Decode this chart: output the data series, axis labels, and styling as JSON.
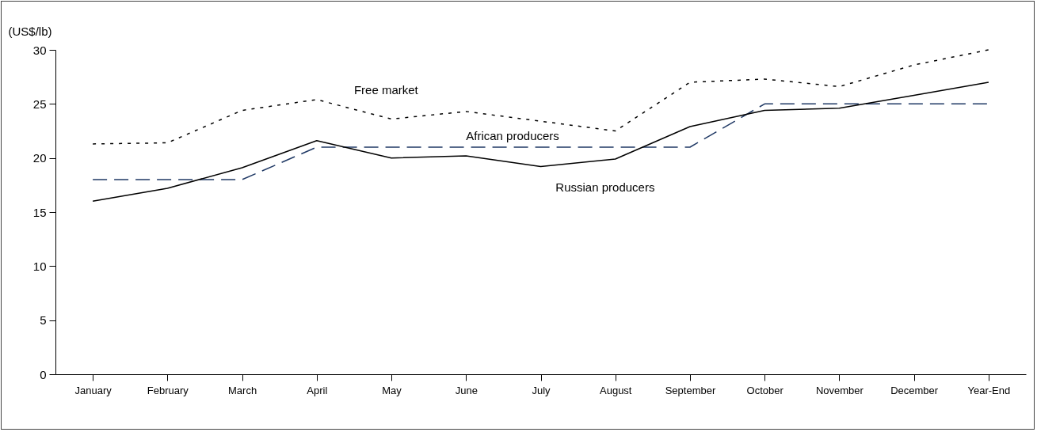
{
  "chart_data": {
    "type": "line",
    "ylabel": "(US$/lb)",
    "categories": [
      "January",
      "February",
      "March",
      "April",
      "May",
      "June",
      "July",
      "August",
      "September",
      "October",
      "November",
      "December",
      "Year-End"
    ],
    "ylim": [
      0,
      30
    ],
    "yticks": [
      0,
      5,
      10,
      15,
      20,
      25,
      30
    ],
    "grid": false,
    "marker": "none",
    "series": [
      {
        "name": "Free market",
        "color": "#000000",
        "line_style": "dotted",
        "values": [
          21.3,
          21.4,
          24.4,
          25.4,
          23.6,
          24.3,
          23.4,
          22.5,
          27.0,
          27.3,
          26.6,
          28.6,
          30.0
        ]
      },
      {
        "name": "African producers",
        "color": "#1f3864",
        "line_style": "dashed",
        "values": [
          18,
          18,
          18,
          21,
          21,
          21,
          21,
          21,
          21,
          25,
          25,
          25,
          25
        ]
      },
      {
        "name": "Russian producers",
        "color": "#000000",
        "line_style": "solid",
        "values": [
          16.0,
          17.2,
          19.1,
          21.6,
          20.0,
          20.2,
          19.2,
          19.9,
          22.9,
          24.4,
          24.6,
          25.8,
          27.0
        ]
      }
    ]
  }
}
